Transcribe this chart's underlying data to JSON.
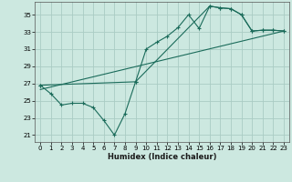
{
  "xlabel": "Humidex (Indice chaleur)",
  "ylabel": "",
  "bg_color": "#cce8e0",
  "grid_color": "#aaccc4",
  "line_color": "#1a6b5a",
  "x_ticks": [
    0,
    1,
    2,
    3,
    4,
    5,
    6,
    7,
    8,
    9,
    10,
    11,
    12,
    13,
    14,
    15,
    16,
    17,
    18,
    19,
    20,
    21,
    22,
    23
  ],
  "x_tick_labels": [
    "0",
    "1",
    "2",
    "3",
    "4",
    "5",
    "6",
    "7",
    "8",
    "9",
    "10",
    "11",
    "12",
    "13",
    "14",
    "15",
    "16",
    "17",
    "18",
    "19",
    "20",
    "21",
    "22",
    "23"
  ],
  "y_ticks": [
    21,
    23,
    25,
    27,
    29,
    31,
    33,
    35
  ],
  "xlim": [
    -0.5,
    23.5
  ],
  "ylim": [
    20.2,
    36.5
  ],
  "line1_x": [
    0,
    1,
    2,
    3,
    4,
    5,
    6,
    7,
    8,
    9,
    10,
    11,
    12,
    13,
    14,
    15,
    16,
    17,
    18,
    19,
    20,
    21,
    22,
    23
  ],
  "line1_y": [
    26.8,
    25.8,
    24.5,
    24.7,
    24.7,
    24.2,
    22.7,
    21.0,
    23.5,
    27.2,
    31.0,
    31.8,
    32.5,
    33.5,
    35.0,
    33.4,
    36.0,
    35.8,
    35.7,
    35.0,
    33.1,
    33.2,
    33.2,
    33.1
  ],
  "line2_x": [
    0,
    9,
    16,
    17,
    18,
    19,
    20,
    21,
    22,
    23
  ],
  "line2_y": [
    26.8,
    27.2,
    36.0,
    35.8,
    35.7,
    35.0,
    33.1,
    33.2,
    33.2,
    33.1
  ],
  "line3_x": [
    0,
    23
  ],
  "line3_y": [
    26.3,
    33.1
  ]
}
